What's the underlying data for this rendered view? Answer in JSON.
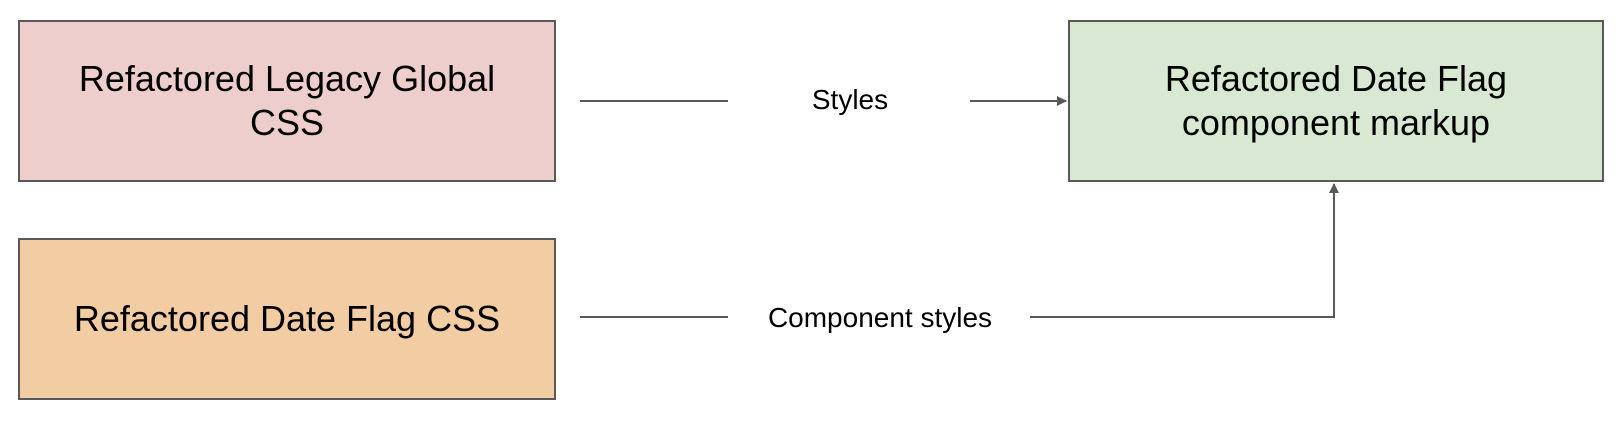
{
  "nodes": {
    "legacy_css": {
      "label": "Refactored Legacy Global CSS",
      "fill": "#eecdcd"
    },
    "date_flag_css": {
      "label": "Refactored Date Flag CSS",
      "fill": "#f2cca2"
    },
    "date_flag_markup": {
      "label": "Refactored Date Flag component markup",
      "fill": "#d9e8d3"
    }
  },
  "edges": {
    "styles": {
      "label": "Styles",
      "from": "legacy_css",
      "to": "date_flag_markup"
    },
    "component_styles": {
      "label": "Component styles",
      "from": "date_flag_css",
      "to": "date_flag_markup"
    }
  },
  "colors": {
    "stroke": "#595959",
    "text": "#000000"
  }
}
